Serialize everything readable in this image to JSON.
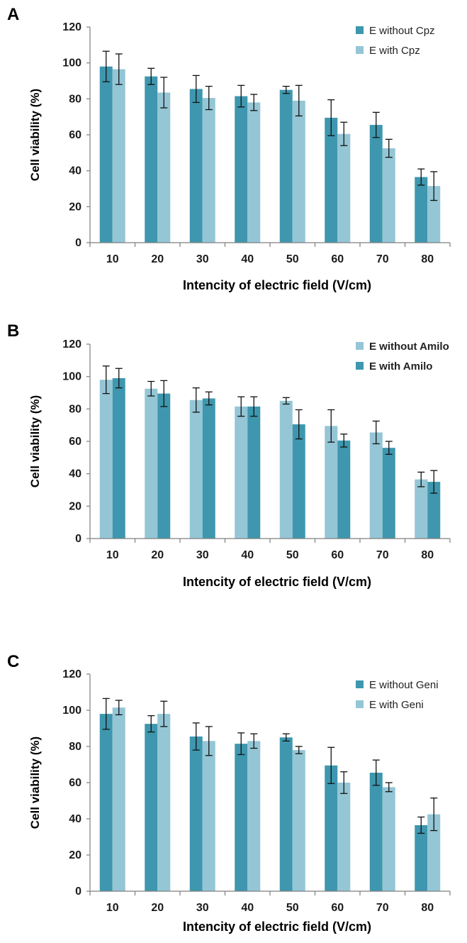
{
  "colors": {
    "dark": "#3e97ae",
    "light": "#94c6d6",
    "axis": "#7f7f7f",
    "text": "#1a1a1a"
  },
  "chart_data": [
    {
      "panel": "A",
      "type": "bar",
      "categories": [
        "10",
        "20",
        "30",
        "40",
        "50",
        "60",
        "70",
        "80"
      ],
      "xlabel": "Intencity of electric field (V/cm)",
      "ylabel": "Cell viability (%)",
      "ylim": [
        0,
        120
      ],
      "yticks": [
        0,
        20,
        40,
        60,
        80,
        100,
        120
      ],
      "grid": false,
      "legend": "top-right",
      "legend_bold": false,
      "series": [
        {
          "name": "E without Cpz",
          "color": "dark",
          "values": [
            98,
            92.5,
            85.5,
            81.5,
            85,
            69.5,
            65.5,
            36.5
          ],
          "errors": [
            8.5,
            4.5,
            7.5,
            6,
            2,
            10,
            7,
            4.5
          ]
        },
        {
          "name": "E with Cpz",
          "color": "light",
          "values": [
            96.5,
            83.5,
            80.5,
            78,
            79,
            60.5,
            52.5,
            31.5
          ],
          "errors": [
            8.5,
            8.5,
            6.5,
            4.5,
            8.5,
            6.5,
            5,
            8
          ]
        }
      ]
    },
    {
      "panel": "B",
      "type": "bar",
      "categories": [
        "10",
        "20",
        "30",
        "40",
        "50",
        "60",
        "70",
        "80"
      ],
      "xlabel": "Intencity of electric field (V/cm)",
      "ylabel": "Cell viability (%)",
      "ylim": [
        0,
        120
      ],
      "yticks": [
        0,
        20,
        40,
        60,
        80,
        100,
        120
      ],
      "grid": false,
      "legend": "top-right",
      "legend_bold": true,
      "series": [
        {
          "name": "E without Amilo",
          "color": "light",
          "values": [
            98,
            92.5,
            85.5,
            81.5,
            85,
            69.5,
            65.5,
            36.5
          ],
          "errors": [
            8.5,
            4.5,
            7.5,
            6,
            2,
            10,
            7,
            4.5
          ]
        },
        {
          "name": "E with Amilo",
          "color": "dark",
          "values": [
            99,
            89.5,
            86.5,
            81.5,
            70.5,
            60.5,
            56,
            35
          ],
          "errors": [
            6,
            8,
            4,
            6,
            9,
            4,
            4,
            7
          ]
        }
      ]
    },
    {
      "panel": "C",
      "type": "bar",
      "categories": [
        "10",
        "20",
        "30",
        "40",
        "50",
        "60",
        "70",
        "80"
      ],
      "xlabel": "Intencity of electric field (V/cm)",
      "ylabel": "Cell viability (%)",
      "ylim": [
        0,
        120
      ],
      "yticks": [
        0,
        20,
        40,
        60,
        80,
        100,
        120
      ],
      "grid": false,
      "legend": "top-right",
      "legend_bold": false,
      "series": [
        {
          "name": "E without Geni",
          "color": "dark",
          "values": [
            98,
            92.5,
            85.5,
            81.5,
            85,
            69.5,
            65.5,
            36.5
          ],
          "errors": [
            8.5,
            4.5,
            7.5,
            6,
            2,
            10,
            7,
            4.5
          ]
        },
        {
          "name": "E with Geni",
          "color": "light",
          "values": [
            101.5,
            98,
            83,
            83,
            78,
            60,
            57.5,
            42.5
          ],
          "errors": [
            4,
            7,
            8,
            4,
            2,
            6,
            2.5,
            9
          ]
        }
      ]
    }
  ]
}
